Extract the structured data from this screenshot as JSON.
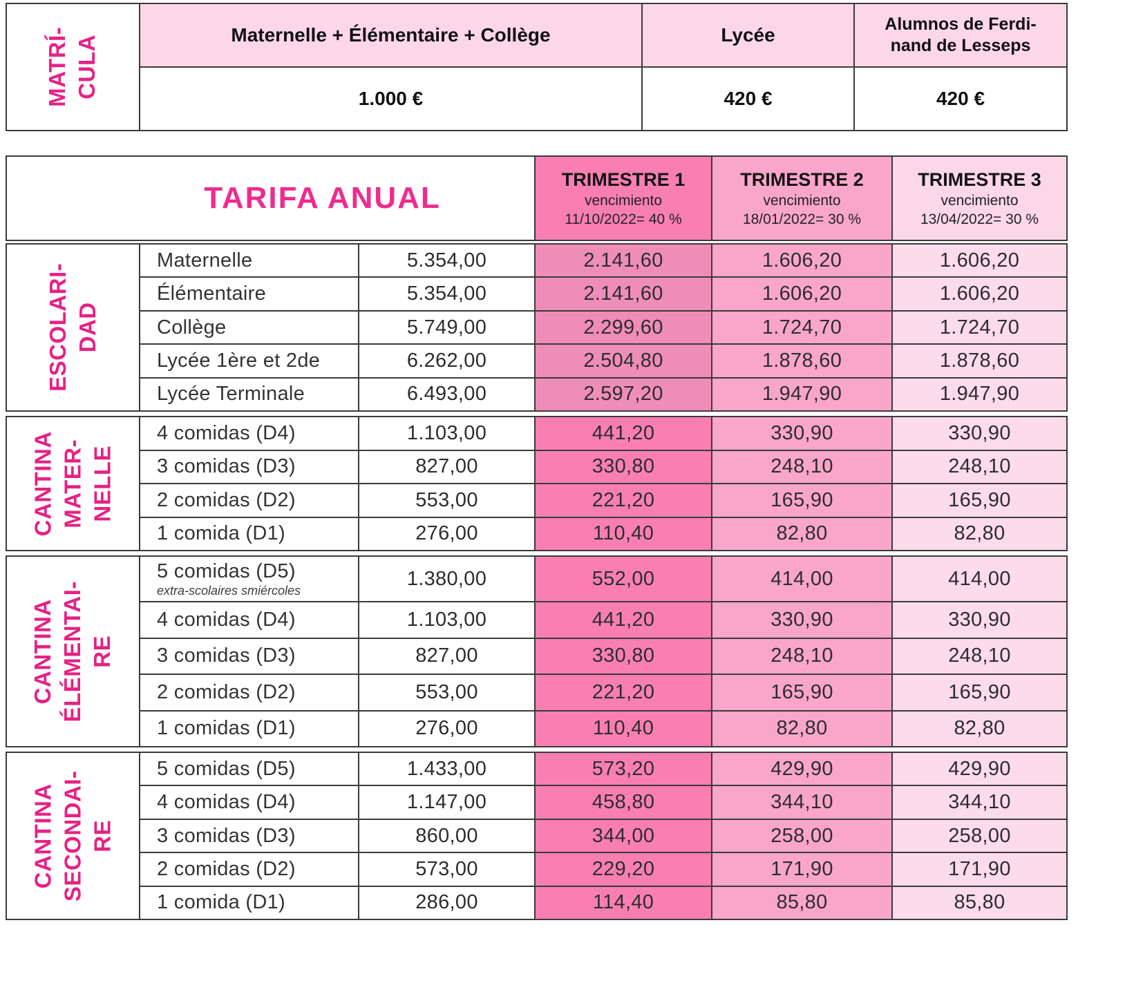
{
  "colors": {
    "magenta_label": "#e62185",
    "magenta_title": "#ee2b90",
    "header_pink": "#fbd7e8",
    "trimestre1_fill": "#f97fb3",
    "trimestre1_fill_escolaridad": "#ef8db9",
    "trimestre2_fill": "#f9a6ca",
    "trimestre3_fill": "#fcdbeb",
    "border": "#3a3a3a",
    "text_dark": "#2d2d2d"
  },
  "matricula": {
    "label": "MATRÍ-\nCULA",
    "columns": [
      {
        "header": "Maternelle + Élémentaire + Collège",
        "value": "1.000 €"
      },
      {
        "header": "Lycée",
        "value": "420 €"
      },
      {
        "header": "Alumnos de Ferdi-\nnand de Lesseps",
        "value": "420 €"
      }
    ]
  },
  "tarifa": {
    "title": "TARIFA ANUAL",
    "trimestres": [
      {
        "name": "TRIMESTRE 1",
        "sub": "vencimiento",
        "due": "11/10/2022= 40 %"
      },
      {
        "name": "TRIMESTRE 2",
        "sub": "vencimiento",
        "due": "18/01/2022= 30 %"
      },
      {
        "name": "TRIMESTRE 3",
        "sub": "vencimiento",
        "due": "13/04/2022= 30 %"
      }
    ]
  },
  "sections": [
    {
      "label": "ESCOLARI-\nDAD",
      "rows": [
        {
          "item": "Maternelle",
          "annual": "5.354,00",
          "t1": "2.141,60",
          "t2": "1.606,20",
          "t3": "1.606,20"
        },
        {
          "item": "Élémentaire",
          "annual": "5.354,00",
          "t1": "2.141,60",
          "t2": "1.606,20",
          "t3": "1.606,20"
        },
        {
          "item": "Collège",
          "annual": "5.749,00",
          "t1": "2.299,60",
          "t2": "1.724,70",
          "t3": "1.724,70"
        },
        {
          "item": "Lycée 1ère et 2de",
          "annual": "6.262,00",
          "t1": "2.504,80",
          "t2": "1.878,60",
          "t3": "1.878,60"
        },
        {
          "item": "Lycée Terminale",
          "annual": "6.493,00",
          "t1": "2.597,20",
          "t2": "1.947,90",
          "t3": "1.947,90"
        }
      ]
    },
    {
      "label": "CANTINA\nMATER-\nNELLE",
      "rows": [
        {
          "item": "4 comidas (D4)",
          "annual": "1.103,00",
          "t1": "441,20",
          "t2": "330,90",
          "t3": "330,90"
        },
        {
          "item": "3 comidas (D3)",
          "annual": "827,00",
          "t1": "330,80",
          "t2": "248,10",
          "t3": "248,10"
        },
        {
          "item": "2 comidas (D2)",
          "annual": "553,00",
          "t1": "221,20",
          "t2": "165,90",
          "t3": "165,90"
        },
        {
          "item": "1 comida (D1)",
          "annual": "276,00",
          "t1": "110,40",
          "t2": "82,80",
          "t3": "82,80"
        }
      ]
    },
    {
      "label": "CANTINA\nÉLÉMENTAI-\nRE",
      "rows": [
        {
          "item": "5 comidas (D5)",
          "note": "extra-scolaires smiércoles",
          "annual": "1.380,00",
          "t1": "552,00",
          "t2": "414,00",
          "t3": "414,00"
        },
        {
          "item": "4 comidas (D4)",
          "annual": "1.103,00",
          "t1": "441,20",
          "t2": "330,90",
          "t3": "330,90"
        },
        {
          "item": "3 comidas (D3)",
          "annual": "827,00",
          "t1": "330,80",
          "t2": "248,10",
          "t3": "248,10"
        },
        {
          "item": "2 comidas (D2)",
          "annual": "553,00",
          "t1": "221,20",
          "t2": "165,90",
          "t3": "165,90"
        },
        {
          "item": "1 comidas (D1)",
          "annual": "276,00",
          "t1": "110,40",
          "t2": "82,80",
          "t3": "82,80"
        }
      ]
    },
    {
      "label": "CANTINA\nSECONDAI-\nRE",
      "rows": [
        {
          "item": "5 comidas (D5)",
          "annual": "1.433,00",
          "t1": "573,20",
          "t2": "429,90",
          "t3": "429,90"
        },
        {
          "item": "4 comidas (D4)",
          "annual": "1.147,00",
          "t1": "458,80",
          "t2": "344,10",
          "t3": "344,10"
        },
        {
          "item": "3 comidas (D3)",
          "annual": "860,00",
          "t1": "344,00",
          "t2": "258,00",
          "t3": "258,00"
        },
        {
          "item": "2 comidas (D2)",
          "annual": "573,00",
          "t1": "229,20",
          "t2": "171,90",
          "t3": "171,90"
        },
        {
          "item": "1 comida (D1)",
          "annual": "286,00",
          "t1": "114,40",
          "t2": "85,80",
          "t3": "85,80"
        }
      ]
    }
  ]
}
